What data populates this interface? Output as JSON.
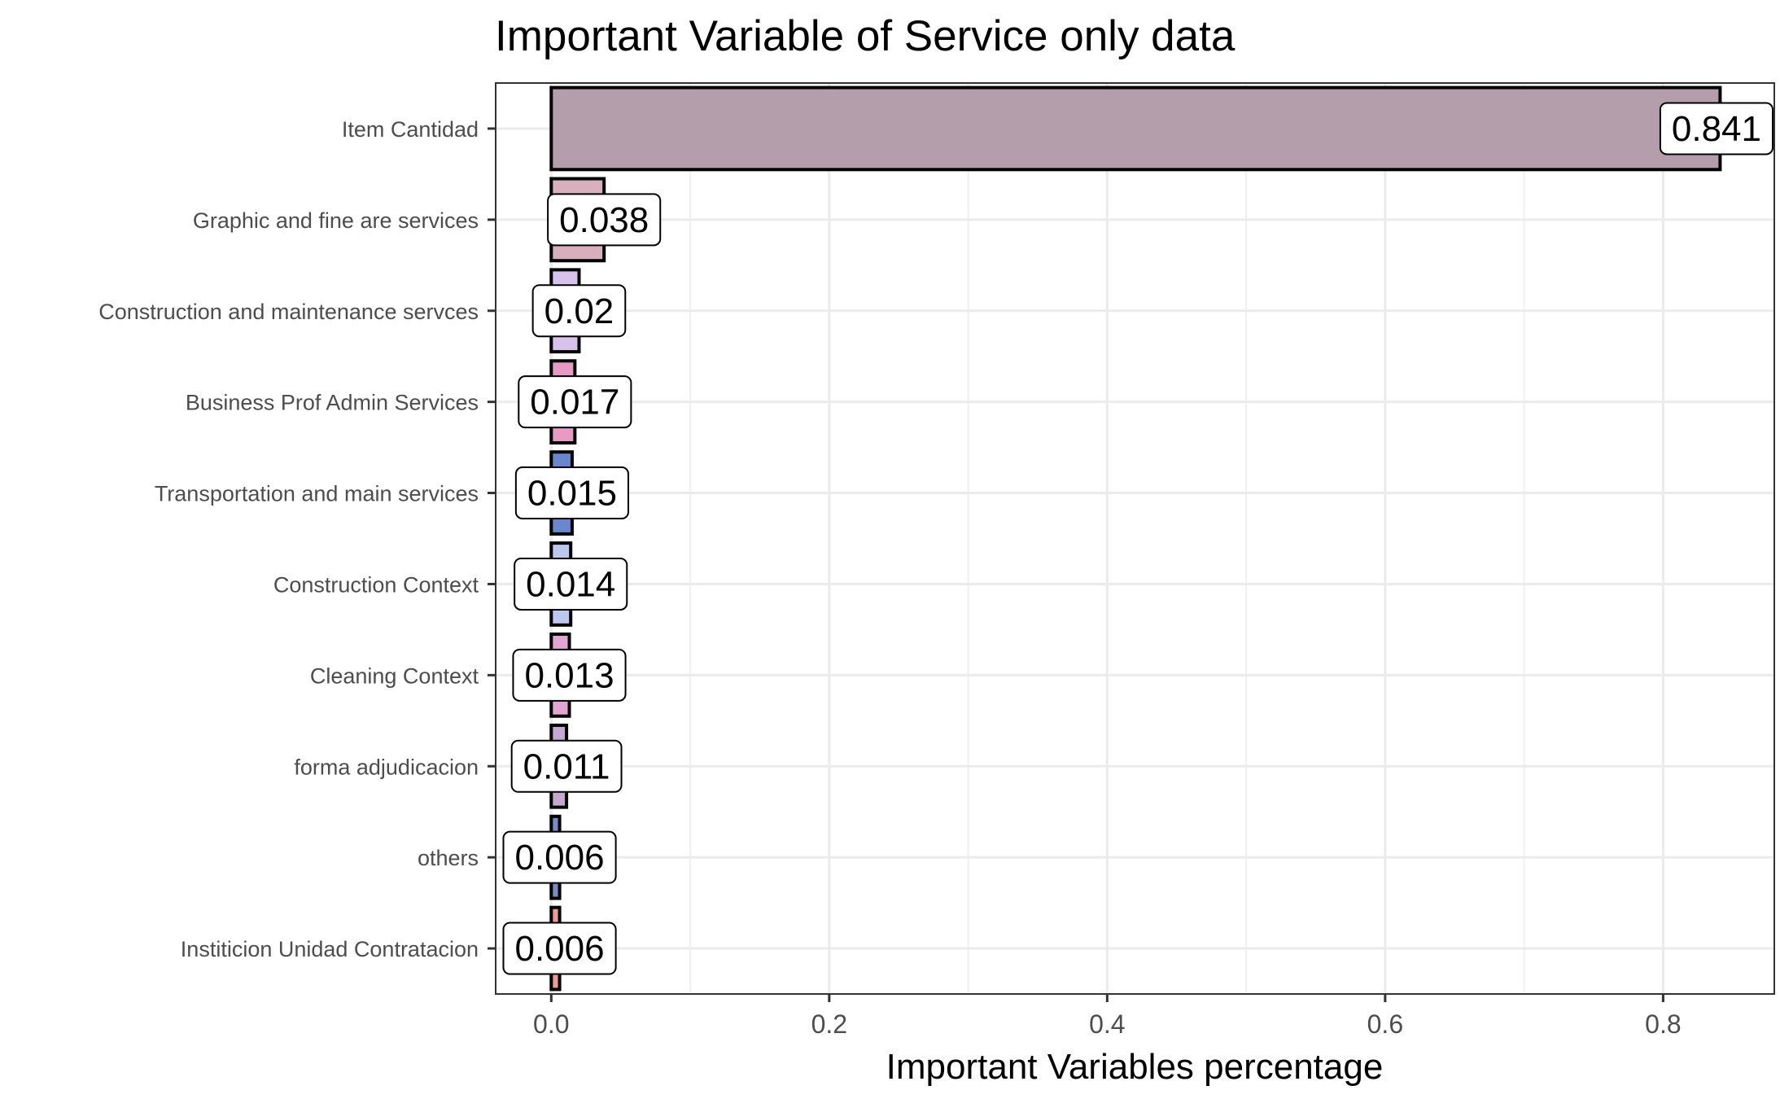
{
  "chart_data": {
    "type": "bar",
    "orientation": "horizontal",
    "title": "Important Variable of Service only data",
    "xlabel": "Important Variables percentage",
    "ylabel": "",
    "xlim": [
      -0.04,
      0.88
    ],
    "x_ticks": [
      "0.0",
      "0.2",
      "0.4",
      "0.6",
      "0.8"
    ],
    "x_tick_values": [
      0,
      0.2,
      0.4,
      0.6,
      0.8
    ],
    "grid": true,
    "legend": "none",
    "categories": [
      "Item Cantidad",
      "Graphic and fine are services",
      "Construction and maintenance servces",
      "Business Prof Admin Services",
      "Transportation and main services",
      "Construction Context",
      "Cleaning Context",
      "forma adjudicacion",
      "others",
      "Institicion Unidad Contratacion"
    ],
    "values": [
      0.841,
      0.038,
      0.02,
      0.017,
      0.015,
      0.014,
      0.013,
      0.011,
      0.006,
      0.006
    ],
    "data_labels": [
      "0.841",
      "0.038",
      "0.02",
      "0.017",
      "0.015",
      "0.014",
      "0.013",
      "0.011",
      "0.006",
      "0.006"
    ],
    "colors": [
      "#b59eac",
      "#d8b0bd",
      "#d6c2ea",
      "#e69ac4",
      "#6a86cc",
      "#bcc8ee",
      "#e2a6d2",
      "#c3a9cf",
      "#7a8ac2",
      "#ec9c94"
    ]
  }
}
